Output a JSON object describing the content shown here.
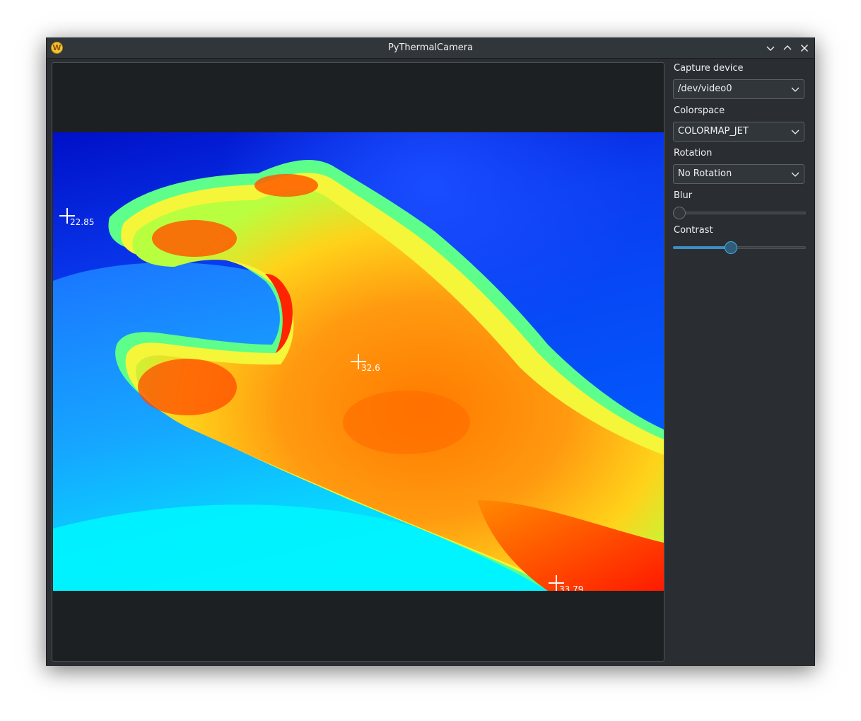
{
  "window": {
    "title": "PyThermalCamera",
    "icon": "app-logo-icon",
    "app_icon_letter": "W",
    "controls": [
      "minimize-icon",
      "maximize-icon",
      "close-icon"
    ]
  },
  "markers": [
    {
      "label": "22.85"
    },
    {
      "label": "32.6"
    },
    {
      "label": "33.79"
    }
  ],
  "sidebar": {
    "capture_device": {
      "label": "Capture device",
      "value": "/dev/video0"
    },
    "colorspace": {
      "label": "Colorspace",
      "value": "COLORMAP_JET"
    },
    "rotation": {
      "label": "Rotation",
      "value": "No Rotation"
    },
    "blur": {
      "label": "Blur",
      "value_fraction": 0.0
    },
    "contrast": {
      "label": "Contrast",
      "value_fraction": 0.43
    }
  },
  "colors": {
    "accent": "#3daee9",
    "window_bg": "#2a2e32",
    "viewport_bg": "#1d2023"
  }
}
